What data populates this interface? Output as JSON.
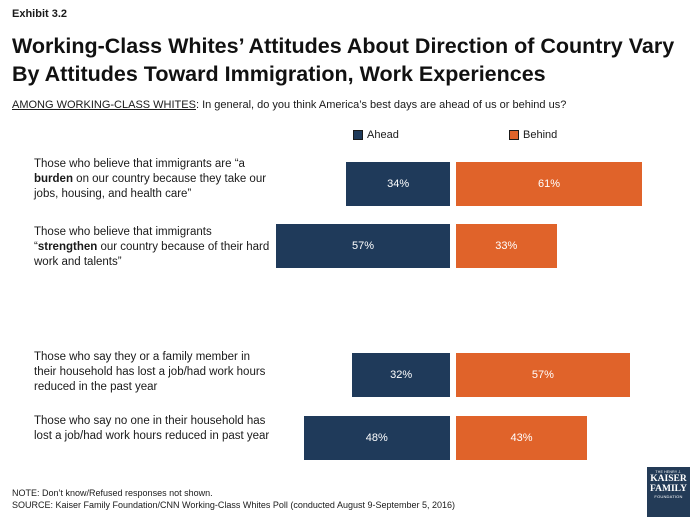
{
  "header": {
    "exhibit": "Exhibit 3.2",
    "title": "Working-Class Whites’ Attitudes About Direction of Country Vary By Attitudes Toward Immigration, Work Experiences",
    "question_label": "AMONG WORKING-CLASS WHITES",
    "question_text": ": In general, do you think America’s best days are ahead of us or behind us?"
  },
  "legend": {
    "ahead": "Ahead",
    "behind": "Behind"
  },
  "colors": {
    "ahead": "#1f3a5a",
    "behind": "#e0632a"
  },
  "rows": [
    {
      "pre": "Those who believe that immigrants are “a ",
      "bold": "burden",
      "post": " on our country because they take our jobs, housing, and health care”"
    },
    {
      "pre": "Those who believe that immigrants “",
      "bold": "strengthen",
      "post": " our country because of their hard work and talents”"
    },
    {
      "pre": "Those who say they or a family member in their household has lost a job/had work hours reduced in the past year",
      "bold": "",
      "post": ""
    },
    {
      "pre": "Those who say no one in their household has lost a job/had work hours reduced in past year",
      "bold": "",
      "post": ""
    }
  ],
  "chart_data": {
    "type": "bar",
    "orientation": "horizontal-diverging",
    "categories": [
      "Those who believe that immigrants are “a burden on our country because they take our jobs, housing, and health care”",
      "Those who believe that immigrants “strengthen our country because of their hard work and talents”",
      "Those who say they or a family member in their household has lost a job/had work hours reduced in the past year",
      "Those who say no one in their household has lost a job/had work hours reduced in past year"
    ],
    "series": [
      {
        "name": "Ahead",
        "values": [
          34,
          57,
          32,
          48
        ],
        "labels": [
          "34%",
          "57%",
          "32%",
          "48%"
        ]
      },
      {
        "name": "Behind",
        "values": [
          61,
          33,
          57,
          43
        ],
        "labels": [
          "61%",
          "33%",
          "57%",
          "43%"
        ]
      }
    ],
    "legend": "top"
  },
  "notes": {
    "note": "NOTE: Don’t know/Refused responses not shown.",
    "source": "SOURCE: Kaiser Family Foundation/CNN Working-Class Whites Poll (conducted August 9-September 5, 2016)"
  },
  "logo": {
    "top": "THE HENRY J.",
    "line1": "KAISER",
    "line2": "FAMILY",
    "bottom": "FOUNDATION"
  }
}
